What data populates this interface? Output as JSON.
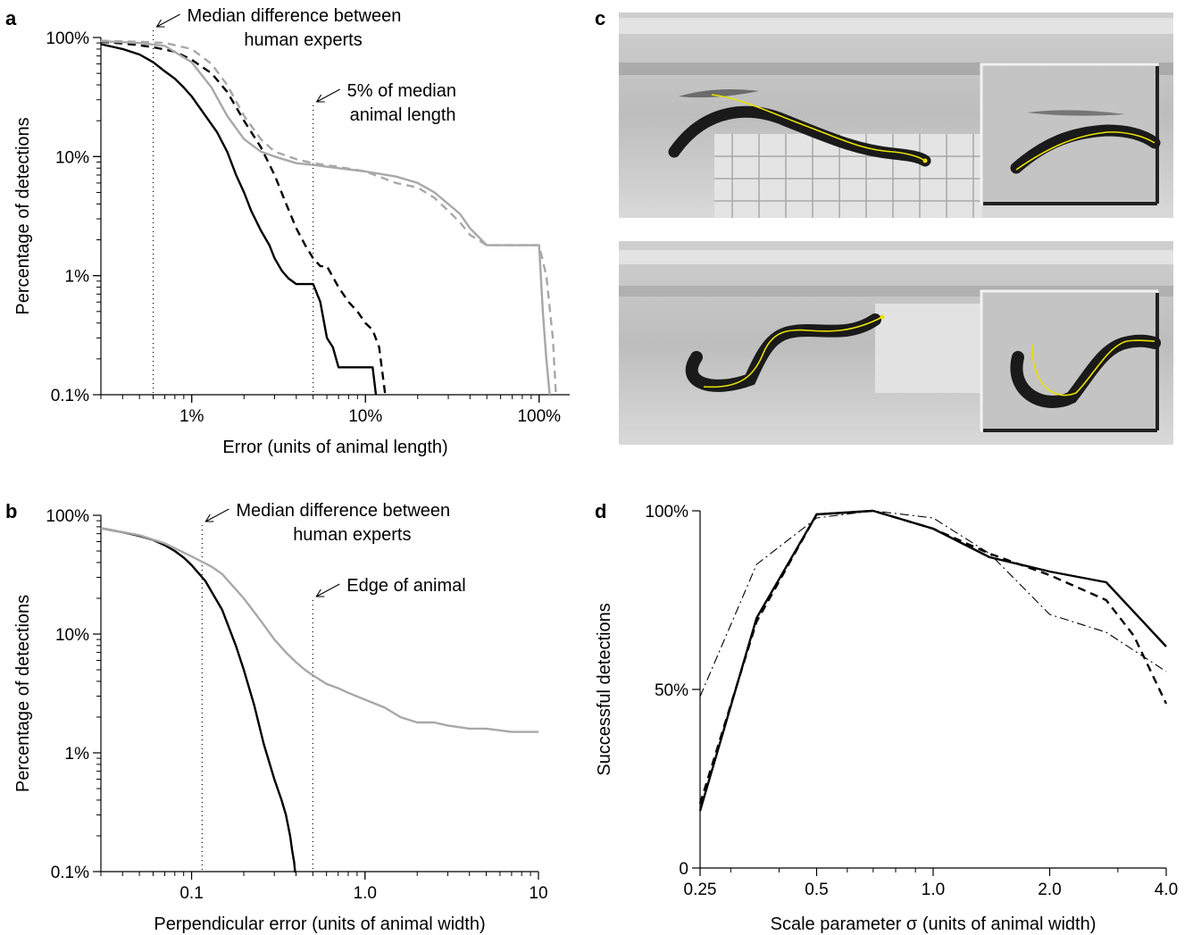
{
  "chart_data": [
    {
      "panel": "a",
      "type": "line",
      "scale": {
        "x": "log",
        "y": "log"
      },
      "xlim": [
        0.003,
        1.5
      ],
      "ylim": [
        0.001,
        1.0
      ],
      "xlabel": "Error (units of animal length)",
      "ylabel": "Percentage of detections",
      "xticks": [
        {
          "v": 0.01,
          "label": "1%"
        },
        {
          "v": 0.1,
          "label": "10%"
        },
        {
          "v": 1.0,
          "label": "100%"
        }
      ],
      "yticks": [
        {
          "v": 1.0,
          "label": "100%"
        },
        {
          "v": 0.1,
          "label": "10%"
        },
        {
          "v": 0.01,
          "label": "1%"
        },
        {
          "v": 0.001,
          "label": "0.1%"
        }
      ],
      "annotations": [
        {
          "name": "median-human",
          "x": 0.006,
          "text": [
            "Median difference between",
            "human experts"
          ]
        },
        {
          "name": "five-percent",
          "x": 0.05,
          "text": [
            "5% of median",
            "animal length"
          ]
        }
      ],
      "series": [
        {
          "style": "solid-black",
          "x": [
            0.003,
            0.004,
            0.005,
            0.006,
            0.007,
            0.008,
            0.009,
            0.01,
            0.012,
            0.014,
            0.016,
            0.018,
            0.02,
            0.022,
            0.025,
            0.028,
            0.03,
            0.033,
            0.036,
            0.04,
            0.045,
            0.05,
            0.055,
            0.06,
            0.065,
            0.07,
            0.09,
            0.11,
            0.115
          ],
          "y": [
            0.88,
            0.8,
            0.72,
            0.62,
            0.52,
            0.45,
            0.38,
            0.32,
            0.22,
            0.16,
            0.11,
            0.07,
            0.05,
            0.035,
            0.024,
            0.018,
            0.014,
            0.011,
            0.0095,
            0.0085,
            0.0085,
            0.0085,
            0.006,
            0.003,
            0.0025,
            0.0017,
            0.0017,
            0.0017,
            0.001
          ]
        },
        {
          "style": "dashed-black",
          "x": [
            0.003,
            0.004,
            0.005,
            0.006,
            0.008,
            0.01,
            0.013,
            0.016,
            0.02,
            0.025,
            0.03,
            0.035,
            0.04,
            0.045,
            0.05,
            0.055,
            0.06,
            0.07,
            0.08,
            0.09,
            0.1,
            0.11,
            0.12,
            0.13
          ],
          "y": [
            0.92,
            0.89,
            0.86,
            0.83,
            0.76,
            0.65,
            0.5,
            0.35,
            0.2,
            0.12,
            0.07,
            0.04,
            0.025,
            0.018,
            0.014,
            0.012,
            0.012,
            0.008,
            0.006,
            0.005,
            0.004,
            0.0035,
            0.0025,
            0.001
          ]
        },
        {
          "style": "solid-gray",
          "x": [
            0.003,
            0.005,
            0.007,
            0.01,
            0.013,
            0.016,
            0.02,
            0.025,
            0.03,
            0.04,
            0.05,
            0.07,
            0.1,
            0.15,
            0.2,
            0.25,
            0.3,
            0.35,
            0.4,
            0.5,
            0.6,
            0.7,
            0.8,
            0.9,
            1.0,
            1.05,
            1.1,
            1.15
          ],
          "y": [
            0.93,
            0.9,
            0.85,
            0.62,
            0.38,
            0.22,
            0.14,
            0.11,
            0.1,
            0.088,
            0.085,
            0.08,
            0.075,
            0.068,
            0.06,
            0.05,
            0.04,
            0.033,
            0.025,
            0.018,
            0.018,
            0.018,
            0.018,
            0.018,
            0.018,
            0.005,
            0.002,
            0.001
          ]
        },
        {
          "style": "dashed-gray",
          "x": [
            0.003,
            0.005,
            0.007,
            0.01,
            0.013,
            0.016,
            0.02,
            0.025,
            0.03,
            0.04,
            0.05,
            0.07,
            0.1,
            0.15,
            0.2,
            0.25,
            0.3,
            0.35,
            0.4,
            0.5,
            0.6,
            0.7,
            0.8,
            0.9,
            1.0,
            1.1,
            1.2,
            1.25
          ],
          "y": [
            0.94,
            0.92,
            0.9,
            0.8,
            0.6,
            0.4,
            0.22,
            0.14,
            0.11,
            0.095,
            0.088,
            0.082,
            0.075,
            0.06,
            0.055,
            0.045,
            0.035,
            0.028,
            0.022,
            0.018,
            0.018,
            0.018,
            0.018,
            0.018,
            0.018,
            0.01,
            0.003,
            0.001
          ]
        }
      ]
    },
    {
      "panel": "b",
      "type": "line",
      "scale": {
        "x": "log",
        "y": "log"
      },
      "xlim": [
        0.03,
        10
      ],
      "ylim": [
        0.001,
        1.0
      ],
      "xlabel": "Perpendicular error (units of animal width)",
      "ylabel": "Percentage of detections",
      "xticks": [
        {
          "v": 0.1,
          "label": "0.1"
        },
        {
          "v": 1.0,
          "label": "1.0"
        },
        {
          "v": 10,
          "label": "10"
        }
      ],
      "yticks": [
        {
          "v": 1.0,
          "label": "100%"
        },
        {
          "v": 0.1,
          "label": "10%"
        },
        {
          "v": 0.01,
          "label": "1%"
        },
        {
          "v": 0.001,
          "label": "0.1%"
        }
      ],
      "annotations": [
        {
          "name": "median-human",
          "x": 0.115,
          "text": [
            "Median difference between",
            "human experts"
          ]
        },
        {
          "name": "edge-animal",
          "x": 0.5,
          "text": [
            "Edge of animal"
          ]
        }
      ],
      "series": [
        {
          "style": "solid-black",
          "x": [
            0.03,
            0.04,
            0.05,
            0.06,
            0.07,
            0.08,
            0.09,
            0.1,
            0.12,
            0.15,
            0.18,
            0.2,
            0.23,
            0.26,
            0.3,
            0.33,
            0.35,
            0.37,
            0.38,
            0.39,
            0.395,
            0.4
          ],
          "y": [
            0.78,
            0.72,
            0.67,
            0.62,
            0.56,
            0.5,
            0.44,
            0.38,
            0.28,
            0.16,
            0.08,
            0.05,
            0.025,
            0.012,
            0.006,
            0.004,
            0.003,
            0.002,
            0.0015,
            0.0012,
            0.001,
            0.001
          ]
        },
        {
          "style": "solid-gray",
          "x": [
            0.03,
            0.05,
            0.07,
            0.1,
            0.13,
            0.15,
            0.2,
            0.25,
            0.3,
            0.35,
            0.4,
            0.45,
            0.5,
            0.6,
            0.7,
            0.8,
            1.0,
            1.3,
            1.6,
            2.0,
            2.5,
            3.0,
            4.0,
            5.0,
            7.0,
            10
          ],
          "y": [
            0.78,
            0.68,
            0.58,
            0.45,
            0.37,
            0.32,
            0.2,
            0.13,
            0.09,
            0.07,
            0.058,
            0.05,
            0.045,
            0.038,
            0.035,
            0.032,
            0.028,
            0.024,
            0.02,
            0.018,
            0.018,
            0.017,
            0.016,
            0.016,
            0.015,
            0.015
          ]
        }
      ]
    },
    {
      "panel": "d",
      "type": "line",
      "scale": {
        "x": "log",
        "y": "linear"
      },
      "xlim": [
        0.25,
        4.0
      ],
      "ylim": [
        0,
        1.0
      ],
      "xlabel": "Scale parameter σ (units of animal width)",
      "ylabel": "Successful detections",
      "xticks": [
        {
          "v": 0.25,
          "label": "0.25"
        },
        {
          "v": 0.5,
          "label": "0.5"
        },
        {
          "v": 1.0,
          "label": "1.0"
        },
        {
          "v": 2.0,
          "label": "2.0"
        },
        {
          "v": 4.0,
          "label": "4.0"
        }
      ],
      "yticks": [
        {
          "v": 1.0,
          "label": "100%"
        },
        {
          "v": 0.5,
          "label": "50%"
        },
        {
          "v": 0,
          "label": "0"
        }
      ],
      "series": [
        {
          "style": "solid-black",
          "x": [
            0.25,
            0.35,
            0.5,
            0.7,
            1.0,
            1.4,
            2.0,
            2.8,
            4.0
          ],
          "y": [
            0.16,
            0.7,
            0.99,
            1.0,
            0.95,
            0.87,
            0.83,
            0.8,
            0.62
          ]
        },
        {
          "style": "dashed-black",
          "x": [
            0.25,
            0.35,
            0.5,
            0.7,
            1.0,
            1.4,
            2.0,
            2.8,
            3.3,
            4.0
          ],
          "y": [
            0.18,
            0.69,
            0.99,
            1.0,
            0.95,
            0.88,
            0.82,
            0.75,
            0.65,
            0.46
          ]
        },
        {
          "style": "dashdot-black",
          "x": [
            0.25,
            0.35,
            0.5,
            0.7,
            1.0,
            1.4,
            2.0,
            2.8,
            4.0
          ],
          "y": [
            0.48,
            0.85,
            0.98,
            1.0,
            0.98,
            0.88,
            0.71,
            0.66,
            0.55
          ]
        }
      ]
    }
  ],
  "panel_labels": {
    "a": "a",
    "b": "b",
    "c": "c",
    "d": "d"
  }
}
